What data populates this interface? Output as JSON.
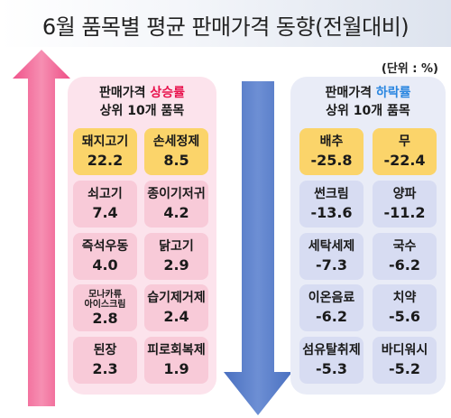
{
  "title": "6월 품목별 평균 판매가격 동향(전월대비)",
  "unit": "(단위 : %)",
  "colors": {
    "up_arrow": "#f06a97",
    "down_arrow": "#5a7fc9",
    "top_card": "#fbd46a",
    "up_accent": "#e8124d",
    "down_accent": "#2a86e0"
  },
  "rise": {
    "heading_prefix": "판매가격 ",
    "heading_highlight": "상승률",
    "heading_line2": "상위 10개 품목",
    "items": [
      {
        "name": "돼지고기",
        "value": "22.2"
      },
      {
        "name": "손세정제",
        "value": "8.5"
      },
      {
        "name": "쇠고기",
        "value": "7.4"
      },
      {
        "name": "종이기저귀",
        "value": "4.2"
      },
      {
        "name": "즉석우동",
        "value": "4.0"
      },
      {
        "name": "닭고기",
        "value": "2.9"
      },
      {
        "name": "모나카류 아이스크림",
        "value": "2.8"
      },
      {
        "name": "습기제거제",
        "value": "2.4"
      },
      {
        "name": "된장",
        "value": "2.3"
      },
      {
        "name": "피로회복제",
        "value": "1.9"
      }
    ]
  },
  "fall": {
    "heading_prefix": "판매가격 ",
    "heading_highlight": "하락률",
    "heading_line2": "상위 10개 품목",
    "items": [
      {
        "name": "배추",
        "value": "-25.8"
      },
      {
        "name": "무",
        "value": "-22.4"
      },
      {
        "name": "썬크림",
        "value": "-13.6"
      },
      {
        "name": "양파",
        "value": "-11.2"
      },
      {
        "name": "세탁세제",
        "value": "-7.3"
      },
      {
        "name": "국수",
        "value": "-6.2"
      },
      {
        "name": "이온음료",
        "value": "-6.2"
      },
      {
        "name": "치약",
        "value": "-5.6"
      },
      {
        "name": "섬유탈취제",
        "value": "-5.3"
      },
      {
        "name": "바디워시",
        "value": "-5.2"
      }
    ]
  }
}
